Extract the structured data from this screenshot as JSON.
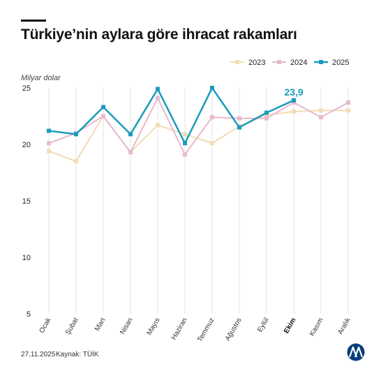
{
  "title": "Türkiye’nin aylara göre ihracat rakamları",
  "footer": {
    "date": "27.11.2025",
    "source": "Kaynak: TÜİK"
  },
  "logo_text": "AA",
  "chart_data": {
    "type": "line",
    "ylabel": "Milyar dolar",
    "ylim": [
      5,
      25
    ],
    "yticks": [
      5,
      10,
      15,
      20,
      25
    ],
    "grid": "vertical",
    "legend_position": "top-right",
    "categories": [
      "Ocak",
      "Şubat",
      "Mart",
      "Nisan",
      "Mayıs",
      "Haziran",
      "Temmuz",
      "Ağustos",
      "Eylül",
      "Ekim",
      "Kasım",
      "Aralık"
    ],
    "highlight_category": "Ekim",
    "series": [
      {
        "name": "2023",
        "color": "#f2dcb3",
        "width": 2,
        "values": [
          19.4,
          18.5,
          22.5,
          19.3,
          21.7,
          20.9,
          20.1,
          21.6,
          22.6,
          22.9,
          23.0,
          23.0
        ]
      },
      {
        "name": "2024",
        "color": "#e6b8cf",
        "width": 2,
        "values": [
          20.1,
          21.0,
          22.5,
          19.3,
          24.1,
          19.1,
          22.4,
          22.3,
          22.3,
          23.7,
          22.4,
          23.7
        ]
      },
      {
        "name": "2025",
        "color": "#1a9bbd",
        "width": 2.5,
        "values": [
          21.2,
          20.9,
          23.3,
          20.9,
          24.9,
          20.1,
          25.0,
          21.5,
          22.8,
          23.9,
          null,
          null
        ]
      }
    ],
    "annotations": [
      {
        "series": "2025",
        "category": "Ekim",
        "text": "23,9"
      }
    ]
  }
}
